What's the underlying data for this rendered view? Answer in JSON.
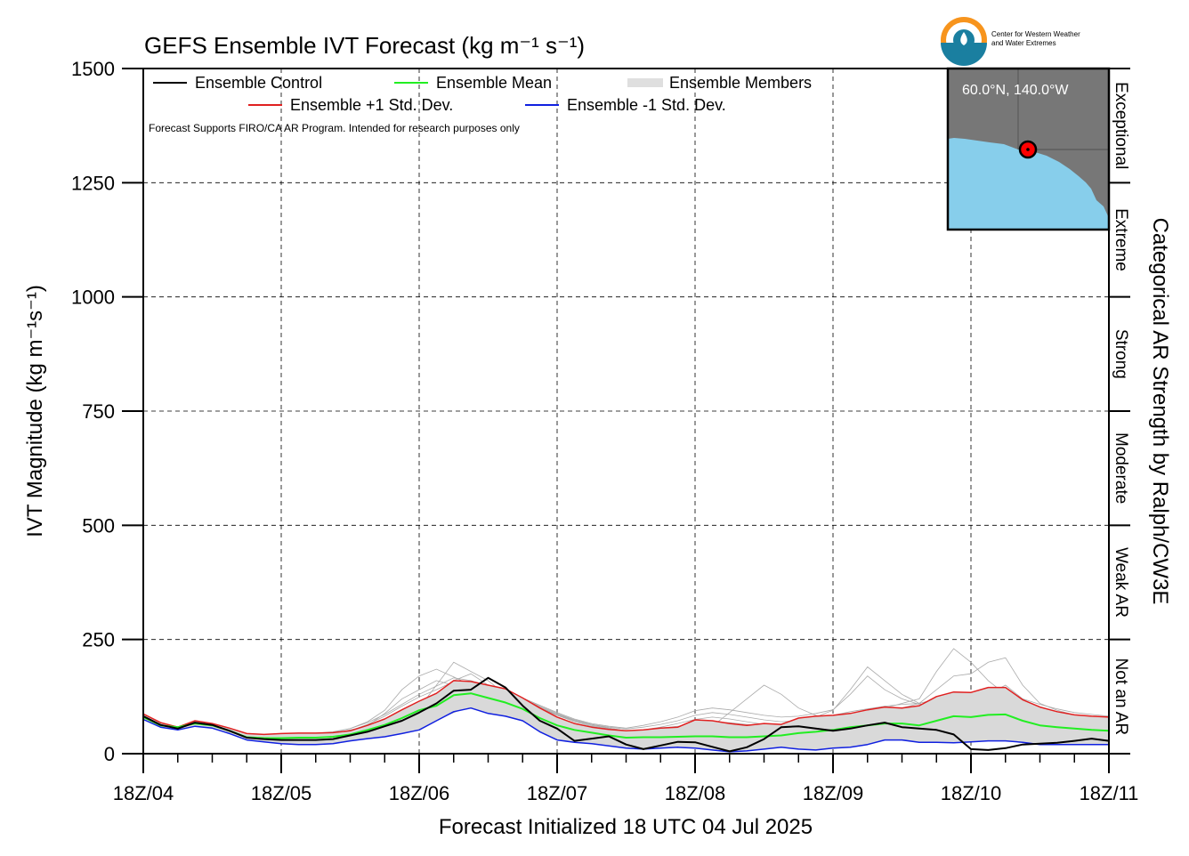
{
  "chart_data": {
    "type": "line",
    "title": "GEFS Ensemble IVT Forecast (kg m⁻¹ s⁻¹)",
    "xlabel": "Forecast Initialized 18 UTC 04 Jul 2025",
    "ylabel": "IVT Magnitude (kg m⁻¹s⁻¹)",
    "right_label": "Categorical AR Strength by Ralph/CW3E",
    "note": "Forecast Supports FIRO/CA AR Program. Intended for research purposes only",
    "xlim": [
      0,
      168
    ],
    "ylim": [
      0,
      1500
    ],
    "x_ticks": [
      0,
      24,
      48,
      72,
      96,
      120,
      144,
      168
    ],
    "x_tick_labels": [
      "18Z/04",
      "18Z/05",
      "18Z/06",
      "18Z/07",
      "18Z/08",
      "18Z/09",
      "18Z/10",
      "18Z/11"
    ],
    "y_ticks": [
      0,
      250,
      500,
      750,
      1000,
      1250,
      1500
    ],
    "y_tick_labels": [
      "0",
      "250",
      "500",
      "750",
      "1000",
      "1250",
      "1500"
    ],
    "grid": true,
    "legend_position": "top-left",
    "categories_right": [
      {
        "label": "Not an AR",
        "from": 0,
        "to": 250
      },
      {
        "label": "Weak AR",
        "from": 250,
        "to": 500
      },
      {
        "label": "Moderate",
        "from": 500,
        "to": 750
      },
      {
        "label": "Strong",
        "from": 750,
        "to": 1000
      },
      {
        "label": "Extreme",
        "from": 1000,
        "to": 1250
      },
      {
        "label": "Exceptional",
        "from": 1250,
        "to": 1500
      }
    ],
    "x": [
      0,
      3,
      6,
      9,
      12,
      15,
      18,
      21,
      24,
      27,
      30,
      33,
      36,
      39,
      42,
      45,
      48,
      51,
      54,
      57,
      60,
      63,
      66,
      69,
      72,
      75,
      78,
      81,
      84,
      87,
      90,
      93,
      96,
      99,
      102,
      105,
      108,
      111,
      114,
      117,
      120,
      123,
      126,
      129,
      132,
      135,
      138,
      141,
      144,
      147,
      150,
      153,
      156,
      159,
      162,
      165,
      168
    ],
    "series": [
      {
        "name": "Ensemble Control",
        "color": "#000000",
        "width": 2,
        "values": [
          82,
          63,
          55,
          68,
          63,
          50,
          35,
          32,
          30,
          30,
          30,
          32,
          40,
          48,
          60,
          72,
          90,
          110,
          138,
          140,
          166,
          145,
          105,
          72,
          55,
          28,
          33,
          38,
          20,
          10,
          18,
          26,
          25,
          15,
          5,
          14,
          32,
          58,
          60,
          55,
          50,
          55,
          62,
          68,
          58,
          55,
          52,
          42,
          10,
          8,
          12,
          20,
          22,
          24,
          28,
          33,
          28
        ]
      },
      {
        "name": "Ensemble Mean",
        "color": "#22ee22",
        "width": 2,
        "values": [
          80,
          62,
          58,
          66,
          62,
          50,
          36,
          34,
          34,
          35,
          35,
          37,
          42,
          52,
          63,
          78,
          95,
          105,
          128,
          132,
          122,
          112,
          98,
          78,
          62,
          52,
          46,
          40,
          35,
          36,
          36,
          37,
          38,
          38,
          36,
          36,
          38,
          40,
          45,
          48,
          52,
          58,
          62,
          66,
          66,
          62,
          72,
          82,
          80,
          85,
          86,
          72,
          62,
          58,
          55,
          52,
          50
        ]
      },
      {
        "name": "Ensemble +1 Std. Dev.",
        "color": "#e02020",
        "width": 1.5,
        "values": [
          87,
          68,
          58,
          72,
          66,
          56,
          44,
          42,
          44,
          45,
          45,
          46,
          50,
          62,
          76,
          96,
          115,
          132,
          160,
          158,
          150,
          142,
          122,
          100,
          80,
          66,
          58,
          53,
          50,
          52,
          56,
          58,
          74,
          72,
          66,
          62,
          66,
          64,
          78,
          82,
          84,
          88,
          96,
          102,
          100,
          105,
          125,
          135,
          134,
          145,
          145,
          118,
          102,
          92,
          85,
          82,
          80
        ]
      },
      {
        "name": "Ensemble -1 Std. Dev.",
        "color": "#1020e0",
        "width": 1.5,
        "values": [
          75,
          58,
          52,
          60,
          56,
          44,
          30,
          26,
          22,
          20,
          20,
          22,
          28,
          33,
          37,
          44,
          52,
          72,
          92,
          100,
          88,
          82,
          72,
          48,
          30,
          25,
          22,
          17,
          12,
          10,
          12,
          14,
          12,
          8,
          4,
          6,
          10,
          14,
          10,
          8,
          12,
          14,
          20,
          30,
          30,
          25,
          25,
          24,
          26,
          28,
          28,
          25,
          20,
          20,
          20,
          20,
          20
        ]
      }
    ],
    "legend": [
      {
        "label": "Ensemble Control",
        "color": "#000000"
      },
      {
        "label": "Ensemble Mean",
        "color": "#22ee22"
      },
      {
        "label": "Ensemble Members",
        "color": "#aaaaaa"
      },
      {
        "label": "Ensemble +1 Std. Dev.",
        "color": "#e02020"
      },
      {
        "label": "Ensemble -1 Std. Dev.",
        "color": "#1020e0"
      }
    ],
    "members": [
      [
        80,
        62,
        56,
        68,
        62,
        50,
        36,
        33,
        32,
        34,
        36,
        40,
        50,
        62,
        88,
        120,
        140,
        160,
        150,
        135,
        120,
        105,
        92,
        78,
        62,
        50,
        42,
        36,
        30,
        28,
        30,
        35,
        42,
        45,
        40,
        38,
        40,
        45,
        48,
        50,
        55,
        60,
        65,
        70,
        70,
        68,
        72,
        80,
        78,
        80,
        82,
        72,
        62,
        56,
        52,
        50,
        48
      ],
      [
        82,
        64,
        58,
        70,
        64,
        52,
        38,
        36,
        38,
        42,
        45,
        48,
        55,
        70,
        95,
        140,
        170,
        185,
        168,
        150,
        130,
        110,
        95,
        80,
        62,
        50,
        45,
        40,
        34,
        32,
        30,
        28,
        26,
        30,
        28,
        34,
        40,
        44,
        50,
        58,
        60,
        62,
        70,
        80,
        78,
        76,
        78,
        82,
        85,
        88,
        90,
        82,
        74,
        66,
        60,
        56,
        52
      ],
      [
        79,
        60,
        54,
        64,
        60,
        48,
        34,
        32,
        30,
        30,
        32,
        36,
        42,
        50,
        60,
        72,
        100,
        150,
        200,
        180,
        160,
        130,
        100,
        80,
        60,
        46,
        40,
        35,
        30,
        30,
        32,
        34,
        36,
        40,
        38,
        36,
        38,
        42,
        40,
        44,
        50,
        56,
        60,
        62,
        60,
        58,
        64,
        70,
        75,
        80,
        85,
        78,
        70,
        62,
        58,
        55,
        52
      ],
      [
        81,
        63,
        57,
        66,
        62,
        50,
        37,
        35,
        36,
        38,
        38,
        40,
        46,
        55,
        70,
        90,
        110,
        130,
        160,
        175,
        150,
        130,
        108,
        90,
        70,
        58,
        50,
        44,
        40,
        44,
        48,
        52,
        60,
        62,
        58,
        54,
        50,
        48,
        52,
        58,
        62,
        70,
        80,
        95,
        100,
        110,
        140,
        170,
        175,
        200,
        210,
        150,
        110,
        95,
        85,
        78,
        72
      ],
      [
        78,
        61,
        55,
        65,
        61,
        49,
        35,
        32,
        30,
        28,
        28,
        30,
        34,
        40,
        50,
        62,
        80,
        100,
        120,
        130,
        125,
        118,
        105,
        90,
        72,
        60,
        54,
        50,
        46,
        48,
        50,
        52,
        56,
        58,
        60,
        56,
        54,
        52,
        56,
        60,
        64,
        70,
        72,
        76,
        74,
        72,
        78,
        85,
        88,
        92,
        95,
        88,
        80,
        72,
        66,
        62,
        58
      ],
      [
        83,
        65,
        59,
        70,
        65,
        52,
        38,
        36,
        38,
        40,
        42,
        44,
        52,
        60,
        72,
        88,
        105,
        120,
        140,
        145,
        138,
        128,
        116,
        100,
        84,
        70,
        60,
        52,
        46,
        42,
        40,
        38,
        42,
        60,
        90,
        120,
        150,
        130,
        100,
        84,
        70,
        62,
        58,
        56,
        54,
        52,
        56,
        60,
        62,
        66,
        70,
        64,
        58,
        54,
        50,
        48,
        46
      ],
      [
        80,
        62,
        56,
        66,
        62,
        50,
        36,
        34,
        34,
        34,
        34,
        36,
        40,
        48,
        58,
        72,
        88,
        105,
        125,
        140,
        150,
        138,
        120,
        102,
        86,
        72,
        62,
        54,
        48,
        52,
        58,
        66,
        75,
        80,
        76,
        70,
        64,
        60,
        64,
        70,
        76,
        82,
        90,
        100,
        110,
        120,
        180,
        230,
        200,
        160,
        130,
        110,
        98,
        90,
        84,
        80,
        76
      ],
      [
        81,
        63,
        57,
        67,
        63,
        51,
        37,
        34,
        33,
        33,
        34,
        38,
        44,
        54,
        66,
        82,
        98,
        115,
        130,
        128,
        118,
        106,
        94,
        82,
        70,
        60,
        52,
        46,
        40,
        36,
        34,
        34,
        36,
        34,
        32,
        30,
        32,
        36,
        40,
        46,
        50,
        56,
        60,
        64,
        66,
        64,
        68,
        72,
        70,
        74,
        76,
        70,
        64,
        60,
        56,
        54,
        52
      ],
      [
        79,
        61,
        55,
        65,
        61,
        49,
        35,
        33,
        32,
        32,
        33,
        35,
        40,
        46,
        54,
        64,
        76,
        90,
        108,
        122,
        130,
        124,
        114,
        100,
        86,
        74,
        64,
        56,
        50,
        46,
        44,
        44,
        46,
        48,
        50,
        52,
        56,
        62,
        70,
        80,
        95,
        140,
        190,
        160,
        130,
        110,
        96,
        90,
        86,
        84,
        82,
        76,
        70,
        66,
        62,
        58,
        56
      ],
      [
        82,
        64,
        58,
        68,
        64,
        52,
        38,
        35,
        34,
        35,
        36,
        40,
        46,
        58,
        74,
        94,
        112,
        128,
        146,
        150,
        142,
        130,
        116,
        100,
        84,
        72,
        64,
        58,
        54,
        58,
        64,
        72,
        84,
        90,
        86,
        80,
        74,
        70,
        72,
        78,
        84,
        92,
        98,
        104,
        108,
        110,
        120,
        128,
        126,
        130,
        132,
        120,
        108,
        98,
        90,
        86,
        82
      ],
      [
        80,
        62,
        56,
        67,
        62,
        50,
        36,
        33,
        31,
        31,
        32,
        34,
        38,
        44,
        52,
        62,
        74,
        88,
        104,
        118,
        125,
        120,
        110,
        96,
        80,
        66,
        56,
        48,
        42,
        38,
        36,
        34,
        34,
        36,
        34,
        32,
        34,
        38,
        42,
        48,
        54,
        60,
        68,
        76,
        80,
        84,
        90,
        100,
        110,
        130,
        150,
        120,
        95,
        80,
        72,
        66,
        62
      ],
      [
        81,
        63,
        57,
        68,
        63,
        51,
        37,
        35,
        35,
        36,
        38,
        42,
        50,
        64,
        82,
        104,
        124,
        140,
        158,
        156,
        146,
        134,
        120,
        104,
        88,
        74,
        64,
        56,
        50,
        52,
        56,
        60,
        66,
        70,
        68,
        64,
        60,
        58,
        62,
        68,
        74,
        80,
        86,
        92,
        96,
        98,
        100,
        104,
        102,
        106,
        108,
        98,
        88,
        80,
        74,
        70,
        68
      ],
      [
        78,
        60,
        54,
        64,
        60,
        48,
        34,
        31,
        29,
        28,
        28,
        30,
        33,
        38,
        45,
        54,
        64,
        76,
        90,
        104,
        112,
        110,
        102,
        90,
        76,
        64,
        54,
        46,
        40,
        36,
        32,
        30,
        28,
        26,
        24,
        22,
        24,
        28,
        32,
        36,
        40,
        44,
        48,
        52,
        54,
        52,
        56,
        60,
        58,
        60,
        62,
        56,
        50,
        46,
        42,
        40,
        38
      ],
      [
        83,
        65,
        59,
        70,
        65,
        53,
        39,
        37,
        38,
        40,
        43,
        47,
        55,
        68,
        86,
        108,
        130,
        148,
        166,
        160,
        148,
        136,
        122,
        106,
        90,
        76,
        66,
        60,
        56,
        62,
        70,
        80,
        94,
        100,
        96,
        90,
        84,
        80,
        82,
        88,
        96,
        130,
        170,
        140,
        120,
        108,
        100,
        96,
        94,
        96,
        98,
        90,
        82,
        76,
        70,
        66,
        64
      ]
    ],
    "inset": {
      "location_label": "60.0°N, 140.0°W",
      "land_color": "#777777",
      "water_color": "#87ceeb",
      "marker_color": "#ff0000"
    },
    "logo": {
      "text_line1": "Center for Western Weather",
      "text_line2": "and Water Extremes",
      "colors": [
        "#f7941d",
        "#1a7fa0"
      ]
    }
  }
}
